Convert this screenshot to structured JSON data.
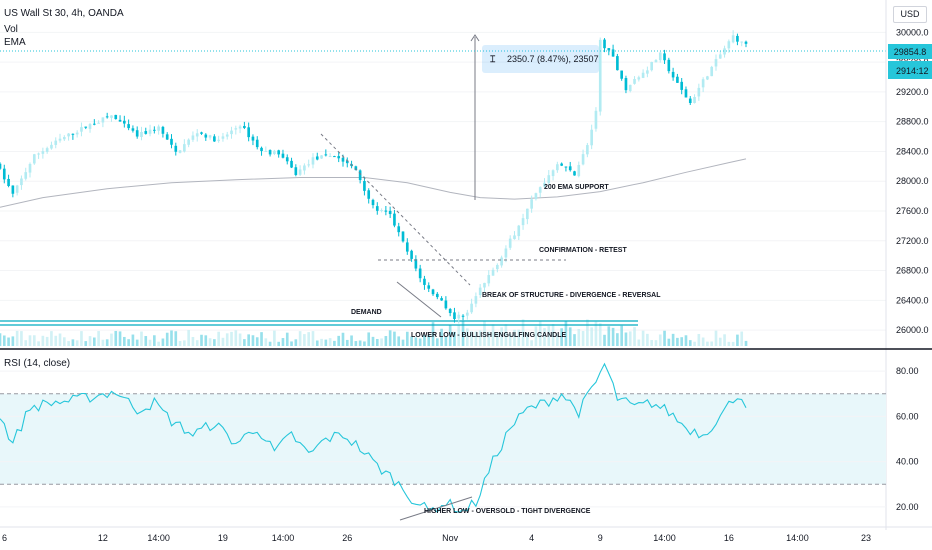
{
  "header": {
    "title": "US Wall St 30, 4h, OANDA",
    "indicators": [
      "Vol",
      "EMA"
    ],
    "currency_button": "USD"
  },
  "measure_tool": {
    "label": "2350.7 (8.47%), 23507"
  },
  "rsi_panel": {
    "title": "RSI (14, close)"
  },
  "annotations": {
    "ema_support": "200 EMA SUPPORT",
    "confirmation": "CONFIRMATION - RETEST",
    "break_structure": "BREAK OF STRUCTURE - DIVERGENCE - REVERSAL",
    "demand": "DEMAND",
    "lower_low": "LOWER LOW - BULLISH ENGULFING CANDLE",
    "higher_low": "HIGHER LOW - OVERSOLD - TIGHT DIVERGENCE"
  },
  "price_badges": {
    "last_price": "29854.8",
    "countdown": "14:12",
    "countdown_prefix": "29"
  },
  "colors": {
    "up": "#b2ebf2",
    "down": "#00bcd4",
    "ema": "#b2b5be",
    "rsi": "#26c6da",
    "rsi_band": "#e8f7fa",
    "badge": "#26c6da",
    "vol_up": "#c5eef3",
    "vol_down": "#7dd8e6"
  },
  "chart_data": [
    {
      "type": "candlestick",
      "title": "US Wall St 30, 4h, OANDA",
      "y_ticks": [
        26000,
        26400,
        26800,
        27200,
        27600,
        28000,
        28400,
        28800,
        29200,
        29600,
        30000
      ],
      "y_tick_labels": [
        "26000.0",
        "26400.0",
        "26800.0",
        "27200.0",
        "27600.0",
        "28000.0",
        "28400.0",
        "28800.0",
        "29200.0",
        "29600.0",
        "30000.0"
      ],
      "ylim": [
        25800,
        30300
      ],
      "x_tick_labels": [
        "6",
        "12",
        "14:00",
        "19",
        "14:00",
        "26",
        "Nov",
        "4",
        "9",
        "14:00",
        "16",
        "14:00",
        "23"
      ],
      "x_tick_index": [
        0,
        24,
        37,
        52,
        66,
        81,
        105,
        124,
        140,
        155,
        170,
        186,
        202
      ],
      "n_bars": 175,
      "last_price": 29854.8,
      "price_path": [
        [
          0,
          28250
        ],
        [
          4,
          27820
        ],
        [
          9,
          28340
        ],
        [
          15,
          28560
        ],
        [
          22,
          28760
        ],
        [
          27,
          28880
        ],
        [
          33,
          28610
        ],
        [
          38,
          28720
        ],
        [
          42,
          28380
        ],
        [
          47,
          28660
        ],
        [
          52,
          28540
        ],
        [
          57,
          28760
        ],
        [
          62,
          28400
        ],
        [
          66,
          28380
        ],
        [
          70,
          28100
        ],
        [
          74,
          28300
        ],
        [
          79,
          28350
        ],
        [
          84,
          28150
        ],
        [
          88,
          27650
        ],
        [
          92,
          27540
        ],
        [
          96,
          27050
        ],
        [
          100,
          26600
        ],
        [
          104,
          26400
        ],
        [
          107,
          26150
        ],
        [
          110,
          26250
        ],
        [
          113,
          26550
        ],
        [
          117,
          26900
        ],
        [
          121,
          27300
        ],
        [
          124,
          27650
        ],
        [
          128,
          28000
        ],
        [
          131,
          28250
        ],
        [
          135,
          28100
        ],
        [
          138,
          28480
        ],
        [
          140,
          28920
        ],
        [
          141,
          29900
        ],
        [
          144,
          29650
        ],
        [
          147,
          29250
        ],
        [
          151,
          29450
        ],
        [
          155,
          29700
        ],
        [
          159,
          29300
        ],
        [
          162,
          29050
        ],
        [
          165,
          29350
        ],
        [
          169,
          29700
        ],
        [
          172,
          29950
        ],
        [
          174,
          29855
        ]
      ],
      "ema_200": [
        [
          0,
          27650
        ],
        [
          10,
          27780
        ],
        [
          25,
          27900
        ],
        [
          40,
          27980
        ],
        [
          55,
          28020
        ],
        [
          70,
          28050
        ],
        [
          85,
          28050
        ],
        [
          95,
          27980
        ],
        [
          105,
          27850
        ],
        [
          112,
          27780
        ],
        [
          120,
          27760
        ],
        [
          130,
          27790
        ],
        [
          140,
          27860
        ],
        [
          150,
          27980
        ],
        [
          160,
          28120
        ],
        [
          170,
          28250
        ],
        [
          174,
          28300
        ]
      ]
    },
    {
      "type": "line",
      "title": "RSI (14, close)",
      "y_ticks": [
        20,
        40,
        60,
        80
      ],
      "y_tick_labels": [
        "20.00",
        "40.00",
        "60.00",
        "80.00"
      ],
      "ylim": [
        12,
        88
      ],
      "band": [
        30,
        70
      ],
      "values_path": [
        [
          0,
          60
        ],
        [
          3,
          48
        ],
        [
          7,
          64
        ],
        [
          12,
          66
        ],
        [
          17,
          67
        ],
        [
          22,
          69
        ],
        [
          27,
          71
        ],
        [
          32,
          63
        ],
        [
          36,
          66
        ],
        [
          40,
          58
        ],
        [
          45,
          52
        ],
        [
          50,
          57
        ],
        [
          55,
          48
        ],
        [
          60,
          55
        ],
        [
          64,
          44
        ],
        [
          68,
          52
        ],
        [
          72,
          43
        ],
        [
          76,
          50
        ],
        [
          80,
          52
        ],
        [
          84,
          46
        ],
        [
          88,
          38
        ],
        [
          92,
          32
        ],
        [
          96,
          24
        ],
        [
          100,
          18
        ],
        [
          104,
          22
        ],
        [
          108,
          18
        ],
        [
          111,
          22
        ],
        [
          115,
          40
        ],
        [
          119,
          55
        ],
        [
          123,
          63
        ],
        [
          127,
          66
        ],
        [
          131,
          70
        ],
        [
          135,
          62
        ],
        [
          139,
          75
        ],
        [
          141,
          83
        ],
        [
          144,
          68
        ],
        [
          148,
          64
        ],
        [
          152,
          66
        ],
        [
          156,
          62
        ],
        [
          160,
          55
        ],
        [
          164,
          52
        ],
        [
          168,
          60
        ],
        [
          172,
          70
        ],
        [
          174,
          66
        ]
      ]
    }
  ]
}
